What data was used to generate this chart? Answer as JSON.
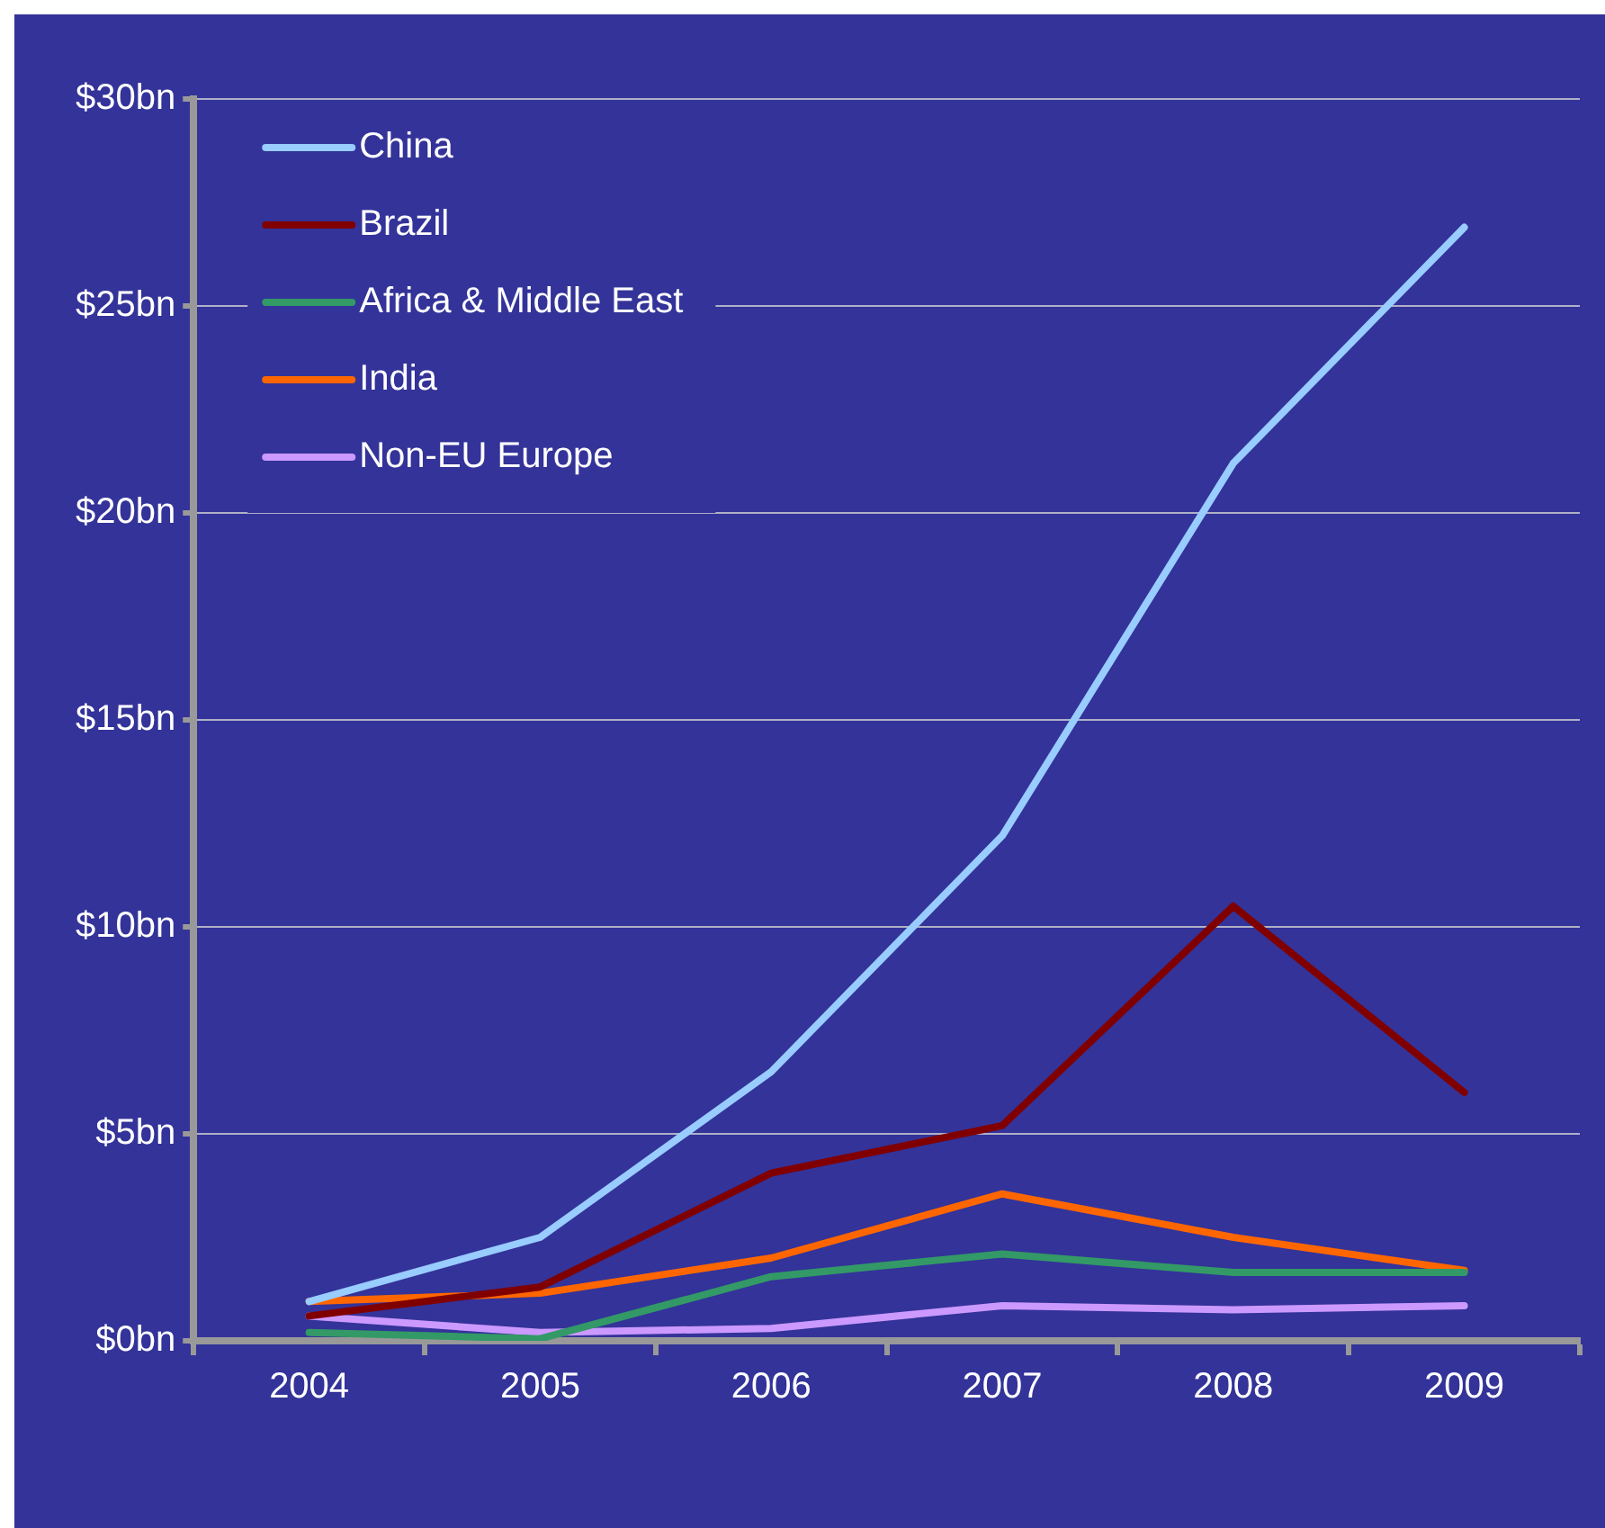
{
  "chart_data": {
    "type": "line",
    "categories": [
      "2004",
      "2005",
      "2006",
      "2007",
      "2008",
      "2009"
    ],
    "series": [
      {
        "name": "China",
        "color": "#99ccff",
        "values": [
          0.95,
          2.5,
          6.5,
          12.2,
          21.2,
          26.9
        ]
      },
      {
        "name": "Brazil",
        "color": "#800000",
        "values": [
          0.6,
          1.3,
          4.05,
          5.2,
          10.5,
          6.0
        ]
      },
      {
        "name": "Africa & Middle East",
        "color": "#339966",
        "values": [
          0.2,
          0.05,
          1.55,
          2.1,
          1.65,
          1.65
        ]
      },
      {
        "name": "India",
        "color": "#ff6600",
        "values": [
          0.95,
          1.15,
          2.0,
          3.55,
          2.5,
          1.7
        ]
      },
      {
        "name": "Non-EU Europe",
        "color": "#cc99ff",
        "values": [
          0.6,
          0.2,
          0.3,
          0.85,
          0.75,
          0.85
        ]
      }
    ],
    "ylim": [
      0,
      30
    ],
    "yticks": [
      {
        "value": 0,
        "label": "$0bn"
      },
      {
        "value": 5,
        "label": "$5bn"
      },
      {
        "value": 10,
        "label": "$10bn"
      },
      {
        "value": 15,
        "label": "$15bn"
      },
      {
        "value": 20,
        "label": "$20bn"
      },
      {
        "value": 25,
        "label": "$25bn"
      },
      {
        "value": 30,
        "label": "$30bn"
      }
    ],
    "grid": "y",
    "legend": "top left",
    "marker": "none",
    "line_style": "solid"
  }
}
